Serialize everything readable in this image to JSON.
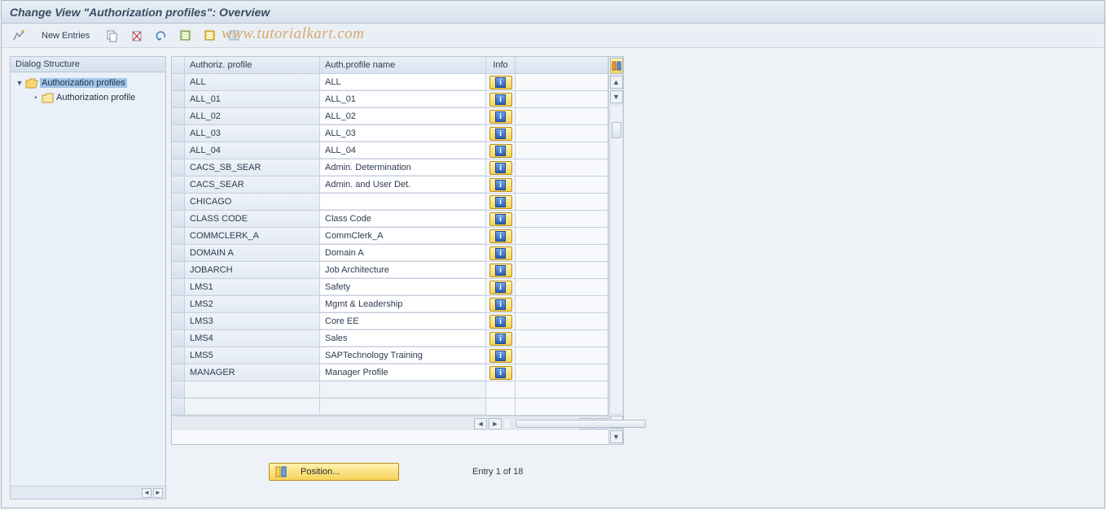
{
  "header": {
    "title": "Change View \"Authorization profiles\": Overview"
  },
  "toolbar": {
    "new_entries": "New Entries",
    "watermark": "www.tutorialkart.com"
  },
  "sidebar": {
    "header": "Dialog Structure",
    "items": [
      {
        "label": "Authorization profiles",
        "expanded": true,
        "selected": true,
        "open": true
      },
      {
        "label": "Authorization profile",
        "expanded": false,
        "selected": false,
        "open": false
      }
    ]
  },
  "table": {
    "columns": {
      "profile": "Authoriz. profile",
      "name": "Auth.profile name",
      "info": "Info"
    },
    "rows": [
      {
        "profile": "ALL",
        "name": "ALL"
      },
      {
        "profile": "ALL_01",
        "name": "ALL_01"
      },
      {
        "profile": "ALL_02",
        "name": "ALL_02"
      },
      {
        "profile": "ALL_03",
        "name": "ALL_03"
      },
      {
        "profile": "ALL_04",
        "name": "ALL_04"
      },
      {
        "profile": "CACS_SB_SEAR",
        "name": "Admin. Determination"
      },
      {
        "profile": "CACS_SEAR",
        "name": "Admin. and User Det."
      },
      {
        "profile": "CHICAGO",
        "name": ""
      },
      {
        "profile": "CLASS CODE",
        "name": "Class Code"
      },
      {
        "profile": "COMMCLERK_A",
        "name": "CommClerk_A"
      },
      {
        "profile": "DOMAIN A",
        "name": "Domain A"
      },
      {
        "profile": "JOBARCH",
        "name": "Job Architecture"
      },
      {
        "profile": "LMS1",
        "name": "Safety"
      },
      {
        "profile": "LMS2",
        "name": "Mgmt & Leadership"
      },
      {
        "profile": "LMS3",
        "name": "Core EE"
      },
      {
        "profile": "LMS4",
        "name": "Sales"
      },
      {
        "profile": "LMS5",
        "name": "SAPTechnology Training"
      },
      {
        "profile": "MANAGER",
        "name": "Manager Profile"
      }
    ],
    "empty_rows": 2
  },
  "footer": {
    "position_label": "Position...",
    "entry_text": "Entry 1 of 18"
  },
  "colors": {
    "header_bg_top": "#e9eff6",
    "header_bg_bottom": "#d6e1ec",
    "border": "#b9c5d3",
    "gold_top": "#fff2b0",
    "gold_bottom": "#f6d35a",
    "info_blue_top": "#6ea2e6",
    "info_blue_bottom": "#2a5db5",
    "watermark": "#d6a86c"
  }
}
